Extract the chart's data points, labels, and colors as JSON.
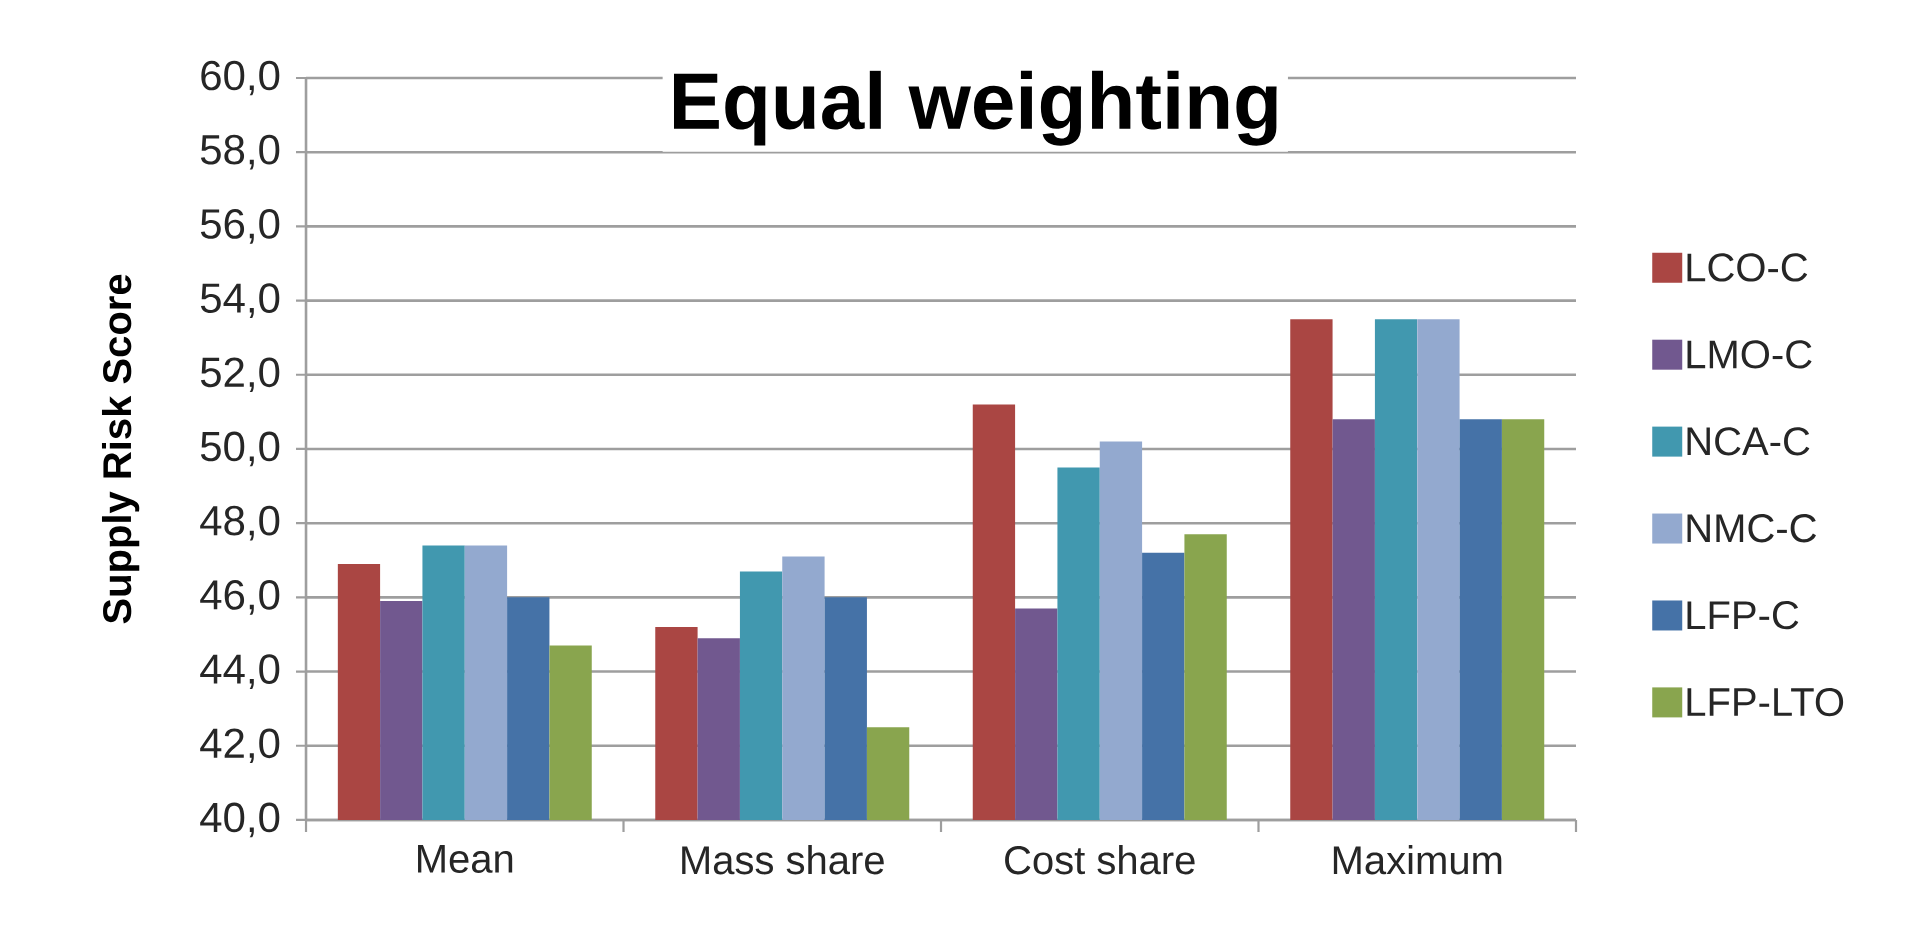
{
  "chart_data": {
    "type": "bar",
    "title": "Equal weighting",
    "ylabel": "Supply Risk Score",
    "categories": [
      "Mean",
      "Mass share",
      "Cost share",
      "Maximum"
    ],
    "series": [
      {
        "name": "LCO-C",
        "color": "#aa4643",
        "values": [
          46.9,
          45.2,
          51.2,
          53.5
        ]
      },
      {
        "name": "LMO-C",
        "color": "#71588f",
        "values": [
          45.9,
          44.9,
          45.7,
          50.8
        ]
      },
      {
        "name": "NCA-C",
        "color": "#4198af",
        "values": [
          47.4,
          46.7,
          49.5,
          53.5
        ]
      },
      {
        "name": "NMC-C",
        "color": "#93a9cf",
        "values": [
          47.4,
          47.1,
          50.2,
          53.5
        ]
      },
      {
        "name": "LFP-C",
        "color": "#4572a7",
        "values": [
          46.0,
          46.0,
          47.2,
          50.8
        ]
      },
      {
        "name": "LFP-LTO",
        "color": "#89a54e",
        "values": [
          44.7,
          42.5,
          47.7,
          50.8
        ]
      }
    ],
    "ylim": [
      40,
      60
    ],
    "yticks": [
      {
        "value": 40,
        "label": "40,0"
      },
      {
        "value": 42,
        "label": "42,0"
      },
      {
        "value": 44,
        "label": "44,0"
      },
      {
        "value": 46,
        "label": "46,0"
      },
      {
        "value": 48,
        "label": "48,0"
      },
      {
        "value": 50,
        "label": "50,0"
      },
      {
        "value": 52,
        "label": "52,0"
      },
      {
        "value": 54,
        "label": "54,0"
      },
      {
        "value": 56,
        "label": "56,0"
      },
      {
        "value": 58,
        "label": "58,0"
      },
      {
        "value": 60,
        "label": "60,0"
      }
    ],
    "grid": "y",
    "legend": "right"
  }
}
